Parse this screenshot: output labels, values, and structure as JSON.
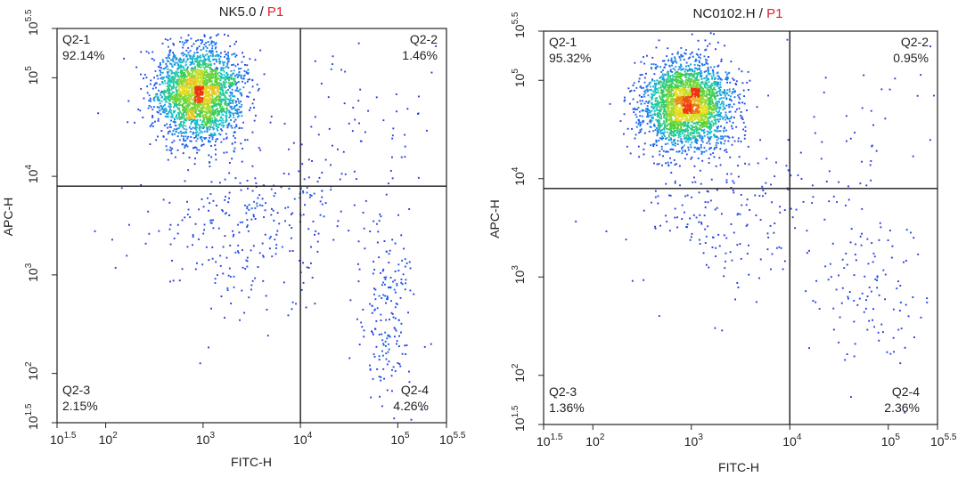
{
  "chart_data": [
    {
      "type": "scatter",
      "subtype": "flow-cytometry-density-plot",
      "title_sample": "NK5.0",
      "title_separator": " / ",
      "title_gate": "P1",
      "xlabel": "FITC-H",
      "ylabel": "APC-H",
      "x_scale": "log10",
      "y_scale": "log10",
      "xlim": [
        1.5,
        5.5
      ],
      "ylim": [
        1.5,
        5.5
      ],
      "x_ticks": [
        {
          "exp": 1.5,
          "base": "10",
          "sup": "1.5"
        },
        {
          "exp": 2,
          "base": "10",
          "sup": "2"
        },
        {
          "exp": 3,
          "base": "10",
          "sup": "3"
        },
        {
          "exp": 4,
          "base": "10",
          "sup": "4"
        },
        {
          "exp": 5,
          "base": "10",
          "sup": "5"
        },
        {
          "exp": 5.5,
          "base": "10",
          "sup": "5.5"
        }
      ],
      "y_ticks": [
        {
          "exp": 1.5,
          "base": "10",
          "sup": "1.5"
        },
        {
          "exp": 2,
          "base": "10",
          "sup": "2"
        },
        {
          "exp": 3,
          "base": "10",
          "sup": "3"
        },
        {
          "exp": 4,
          "base": "10",
          "sup": "4"
        },
        {
          "exp": 5,
          "base": "10",
          "sup": "5"
        },
        {
          "exp": 5.5,
          "base": "10",
          "sup": "5.5"
        }
      ],
      "gate_x": 4.0,
      "gate_y": 3.9,
      "quadrants": [
        {
          "id": "Q2-1",
          "label": "Q2-1",
          "percent": "92.14%",
          "position": "top-left"
        },
        {
          "id": "Q2-2",
          "label": "Q2-2",
          "percent": "1.46%",
          "position": "top-right"
        },
        {
          "id": "Q2-3",
          "label": "Q2-3",
          "percent": "2.15%",
          "position": "bottom-left"
        },
        {
          "id": "Q2-4",
          "label": "Q2-4",
          "percent": "4.26%",
          "position": "bottom-right"
        }
      ],
      "populations": [
        {
          "cx": 2.95,
          "cy": 4.85,
          "sx": 0.22,
          "sy": 0.24,
          "n": 2600
        },
        {
          "cx": 4.9,
          "cy": 2.55,
          "sx": 0.14,
          "sy": 0.45,
          "n": 180
        },
        {
          "cx": 3.55,
          "cy": 3.5,
          "sx": 0.55,
          "sy": 0.45,
          "n": 320
        },
        {
          "cx": 4.7,
          "cy": 4.4,
          "sx": 0.45,
          "sy": 0.4,
          "n": 60
        }
      ],
      "seed": 11
    },
    {
      "type": "scatter",
      "subtype": "flow-cytometry-density-plot",
      "title_sample": "NC0102.H",
      "title_separator": " / ",
      "title_gate": "P1",
      "xlabel": "FITC-H",
      "ylabel": "APC-H",
      "x_scale": "log10",
      "y_scale": "log10",
      "xlim": [
        1.5,
        5.5
      ],
      "ylim": [
        1.5,
        5.5
      ],
      "x_ticks": [
        {
          "exp": 1.5,
          "base": "10",
          "sup": "1.5"
        },
        {
          "exp": 2,
          "base": "10",
          "sup": "2"
        },
        {
          "exp": 3,
          "base": "10",
          "sup": "3"
        },
        {
          "exp": 4,
          "base": "10",
          "sup": "4"
        },
        {
          "exp": 5,
          "base": "10",
          "sup": "5"
        },
        {
          "exp": 5.5,
          "base": "10",
          "sup": "5.5"
        }
      ],
      "y_ticks": [
        {
          "exp": 1.5,
          "base": "10",
          "sup": "1.5"
        },
        {
          "exp": 2,
          "base": "10",
          "sup": "2"
        },
        {
          "exp": 3,
          "base": "10",
          "sup": "3"
        },
        {
          "exp": 4,
          "base": "10",
          "sup": "4"
        },
        {
          "exp": 5,
          "base": "10",
          "sup": "5"
        },
        {
          "exp": 5.5,
          "base": "10",
          "sup": "5.5"
        }
      ],
      "gate_x": 4.0,
      "gate_y": 3.9,
      "quadrants": [
        {
          "id": "Q2-1",
          "label": "Q2-1",
          "percent": "95.32%",
          "position": "top-left"
        },
        {
          "id": "Q2-2",
          "label": "Q2-2",
          "percent": "0.95%",
          "position": "top-right"
        },
        {
          "id": "Q2-3",
          "label": "Q2-3",
          "percent": "1.36%",
          "position": "bottom-left"
        },
        {
          "id": "Q2-4",
          "label": "Q2-4",
          "percent": "2.36%",
          "position": "bottom-right"
        }
      ],
      "populations": [
        {
          "cx": 2.95,
          "cy": 4.75,
          "sx": 0.22,
          "sy": 0.22,
          "n": 2700
        },
        {
          "cx": 4.85,
          "cy": 2.9,
          "sx": 0.3,
          "sy": 0.4,
          "n": 110
        },
        {
          "cx": 3.4,
          "cy": 3.6,
          "sx": 0.5,
          "sy": 0.4,
          "n": 200
        },
        {
          "cx": 4.8,
          "cy": 4.4,
          "sx": 0.45,
          "sy": 0.4,
          "n": 40
        }
      ],
      "seed": 23
    }
  ],
  "colors": {
    "axis": "#222222",
    "gate_line": "#1a1a1a",
    "gate_name": "#e0202a",
    "density_low": "#2a2ad8",
    "density_mid": "#18c4c8",
    "density_high": "#f03010"
  }
}
